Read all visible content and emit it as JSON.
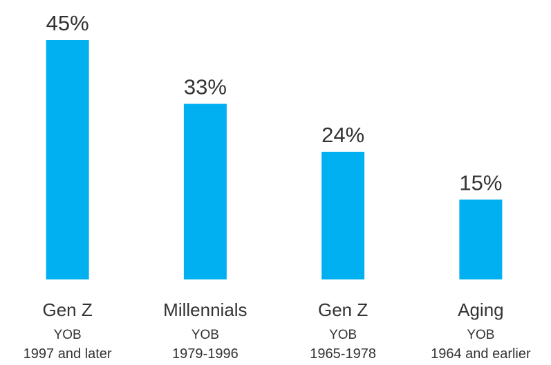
{
  "chart_data": {
    "type": "bar",
    "categories": [
      "Gen Z",
      "Millennials",
      "Gen Z",
      "Aging"
    ],
    "category_details": [
      [
        "YOB",
        "1997 and later"
      ],
      [
        "YOB",
        "1979-1996"
      ],
      [
        "YOB",
        "1965-1978"
      ],
      [
        "YOB",
        "1964 and earlier"
      ]
    ],
    "values": [
      45,
      33,
      24,
      15
    ],
    "value_labels": [
      "45%",
      "33%",
      "24%",
      "15%"
    ],
    "color": "#00b0f0"
  }
}
